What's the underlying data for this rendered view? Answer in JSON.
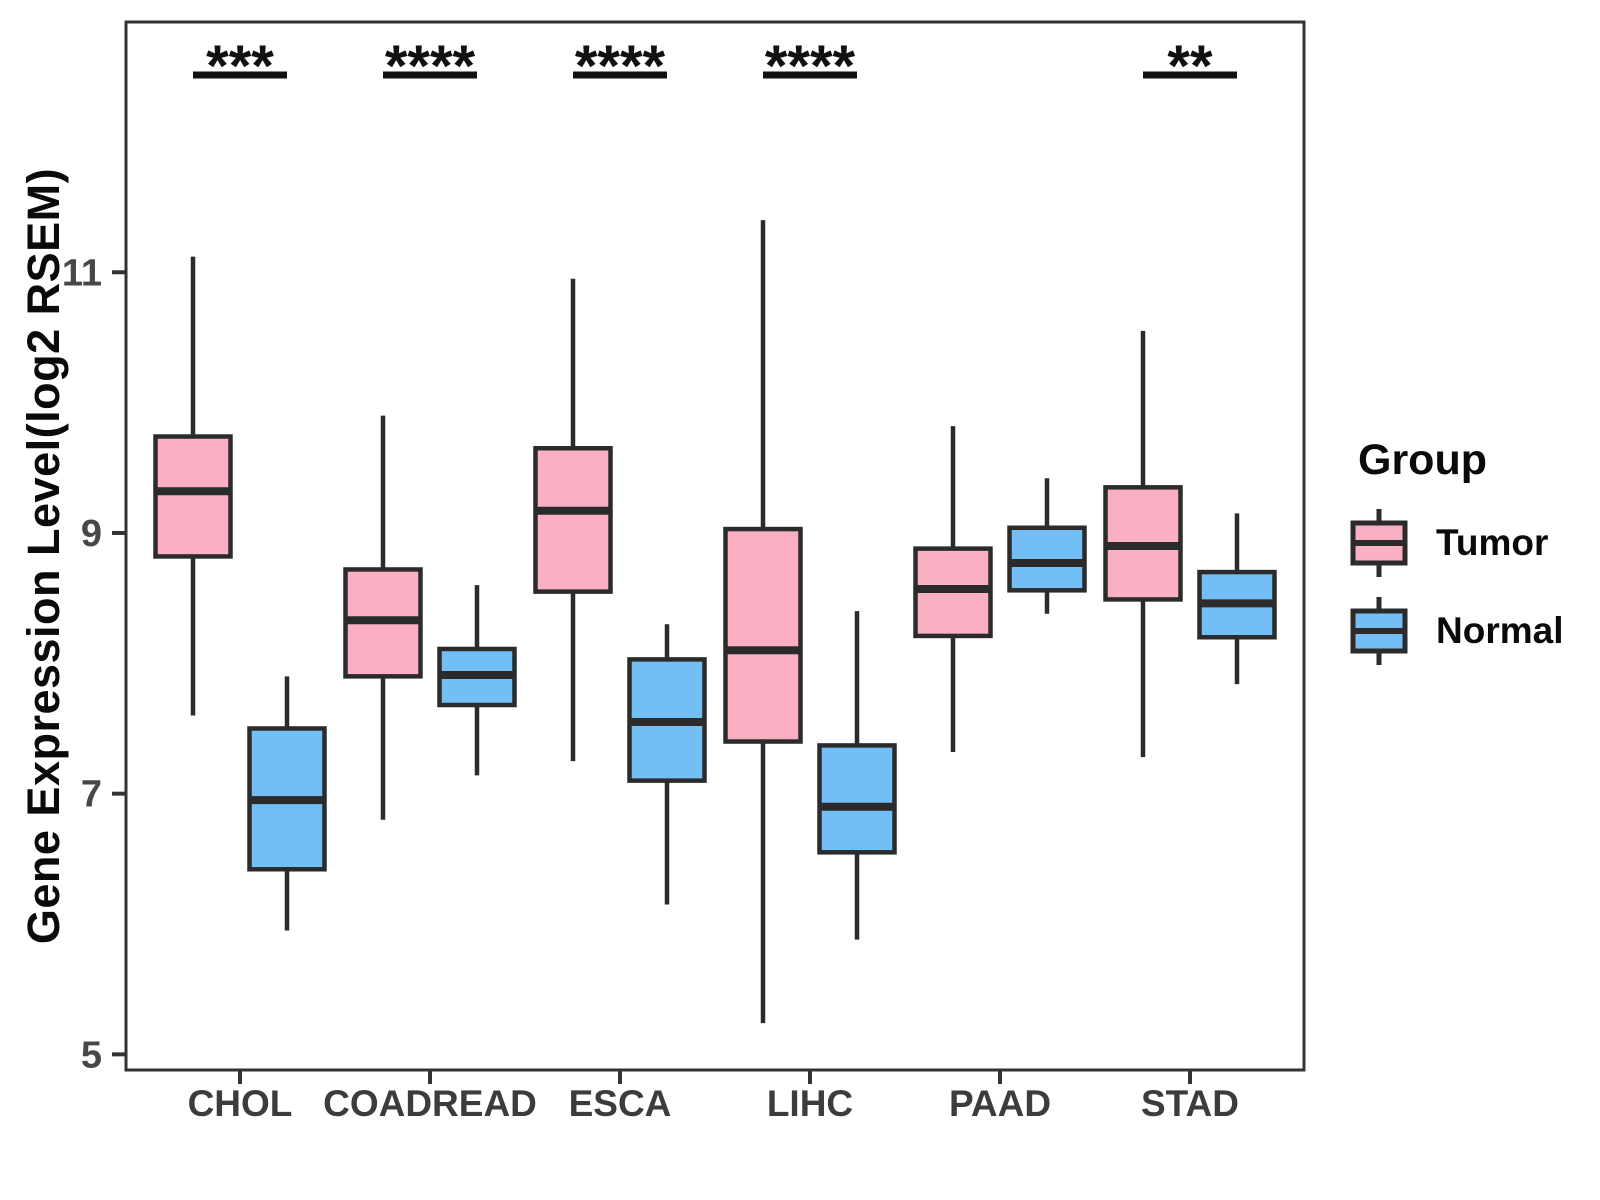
{
  "axis": {
    "y_label": "Gene Expression Level(log2 RSEM)"
  },
  "legend": {
    "title": "Group",
    "entries": [
      {
        "label": "Tumor",
        "color": "#FBAFC2"
      },
      {
        "label": "Normal",
        "color": "#73BFF5"
      }
    ]
  },
  "style": {
    "box_stroke": "#2B2B2B",
    "panel_border": "#333333",
    "tick_color": "#333333",
    "tick_label_color": "#3C3C3C",
    "axis_number_color": "#474747",
    "sig_color": "#111111",
    "background": "#FFFFFF"
  },
  "chart_data": {
    "type": "boxplot",
    "title": "",
    "xlabel": "",
    "ylabel": "Gene Expression Level(log2 RSEM)",
    "categories": [
      "CHOL",
      "COADREAD",
      "ESCA",
      "LIHC",
      "PAAD",
      "STAD"
    ],
    "ylim": [
      4.88,
      12.92
    ],
    "y_ticks": [
      11,
      9,
      7,
      5
    ],
    "grid": false,
    "legend_position": "right",
    "series": [
      {
        "name": "Tumor",
        "color": "#FBAFC2",
        "boxes": [
          {
            "low": 7.6,
            "q1": 8.82,
            "median": 9.32,
            "q3": 9.74,
            "high": 11.12
          },
          {
            "low": 6.8,
            "q1": 7.9,
            "median": 8.33,
            "q3": 8.72,
            "high": 9.9
          },
          {
            "low": 7.25,
            "q1": 8.55,
            "median": 9.17,
            "q3": 9.65,
            "high": 10.95
          },
          {
            "low": 5.24,
            "q1": 7.4,
            "median": 8.1,
            "q3": 9.03,
            "high": 11.4
          },
          {
            "low": 7.32,
            "q1": 8.21,
            "median": 8.57,
            "q3": 8.88,
            "high": 9.82
          },
          {
            "low": 7.28,
            "q1": 8.49,
            "median": 8.9,
            "q3": 9.35,
            "high": 10.55
          }
        ]
      },
      {
        "name": "Normal",
        "color": "#73BFF5",
        "boxes": [
          {
            "low": 5.95,
            "q1": 6.42,
            "median": 6.95,
            "q3": 7.5,
            "high": 7.9
          },
          {
            "low": 7.14,
            "q1": 7.68,
            "median": 7.91,
            "q3": 8.11,
            "high": 8.6
          },
          {
            "low": 6.15,
            "q1": 7.1,
            "median": 7.55,
            "q3": 8.03,
            "high": 8.3
          },
          {
            "low": 5.88,
            "q1": 6.55,
            "median": 6.9,
            "q3": 7.37,
            "high": 8.4
          },
          {
            "low": 8.38,
            "q1": 8.56,
            "median": 8.77,
            "q3": 9.04,
            "high": 9.42
          },
          {
            "low": 7.84,
            "q1": 8.2,
            "median": 8.46,
            "q3": 8.7,
            "high": 9.15
          }
        ]
      }
    ],
    "significance": [
      {
        "category": "CHOL",
        "label": "***"
      },
      {
        "category": "COADREAD",
        "label": "****"
      },
      {
        "category": "ESCA",
        "label": "****"
      },
      {
        "category": "LIHC",
        "label": "****"
      },
      {
        "category": "PAAD",
        "label": null
      },
      {
        "category": "STAD",
        "label": "**"
      }
    ]
  }
}
